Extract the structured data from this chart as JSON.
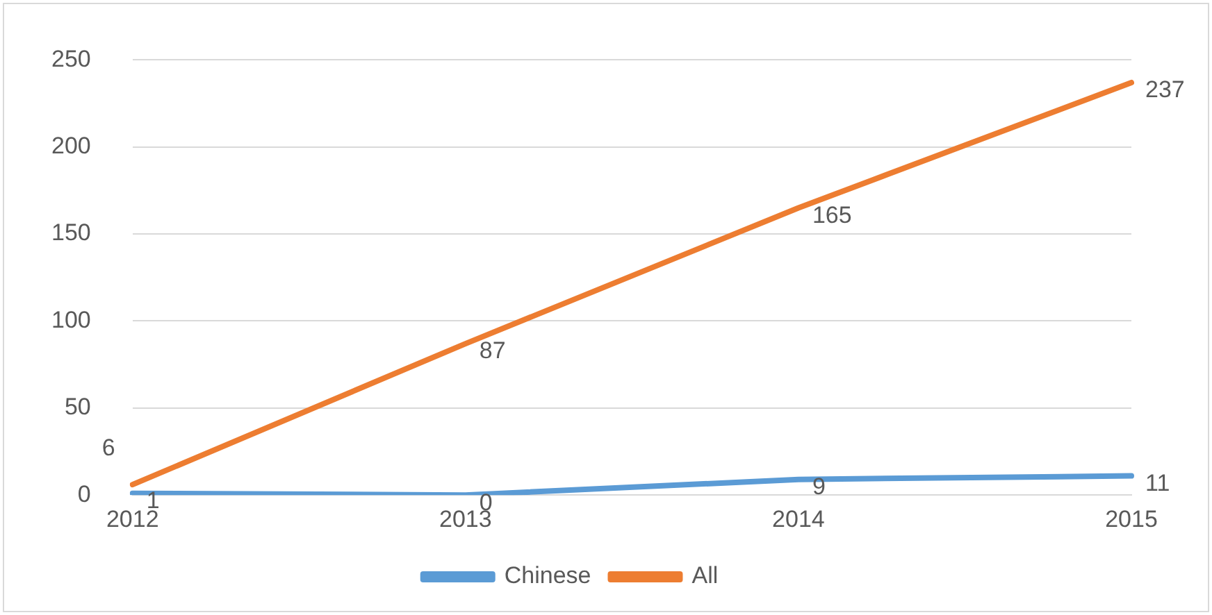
{
  "chart_data": {
    "type": "line",
    "categories": [
      "2012",
      "2013",
      "2014",
      "2015"
    ],
    "series": [
      {
        "name": "Chinese",
        "color": "#5b9bd5",
        "values": [
          1,
          0,
          9,
          11
        ]
      },
      {
        "name": "All",
        "color": "#ed7d31",
        "values": [
          6,
          87,
          165,
          237
        ]
      }
    ],
    "ylim": [
      0,
      250
    ],
    "yticks": [
      0,
      50,
      100,
      150,
      200,
      250
    ],
    "grid": "y",
    "legend": "bottom",
    "data_labels": true,
    "marker": "none",
    "line_style": "solid"
  }
}
